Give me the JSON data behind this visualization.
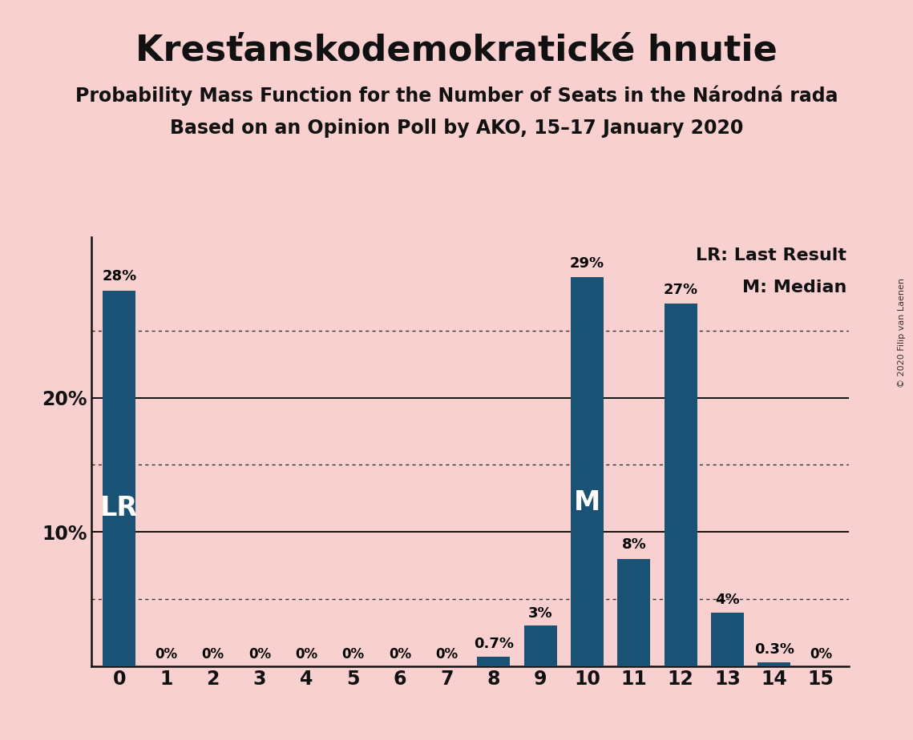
{
  "title": "Kresťanskodemokratické hnutie",
  "subtitle1": "Probability Mass Function for the Number of Seats in the Národná rada",
  "subtitle2": "Based on an Opinion Poll by AKO, 15–17 January 2020",
  "copyright": "© 2020 Filip van Laenen",
  "categories": [
    0,
    1,
    2,
    3,
    4,
    5,
    6,
    7,
    8,
    9,
    10,
    11,
    12,
    13,
    14,
    15
  ],
  "values": [
    28,
    0,
    0,
    0,
    0,
    0,
    0,
    0,
    0.7,
    3,
    29,
    8,
    27,
    4,
    0.3,
    0
  ],
  "bar_color": "#1a5276",
  "background_color": "#f9d0d0",
  "bar_labels": [
    "28%",
    "0%",
    "0%",
    "0%",
    "0%",
    "0%",
    "0%",
    "0%",
    "0.7%",
    "3%",
    "29%",
    "8%",
    "27%",
    "4%",
    "0.3%",
    "0%"
  ],
  "ylim_max": 32,
  "solid_gridlines": [
    10,
    20
  ],
  "dotted_gridlines": [
    5,
    15,
    25
  ],
  "lr_bar_idx": 0,
  "median_bar_idx": 10,
  "lr_label": "LR",
  "median_label": "M",
  "legend_lr": "LR: Last Result",
  "legend_m": "M: Median",
  "title_fontsize": 32,
  "subtitle_fontsize": 17,
  "bar_label_fontsize": 13,
  "axis_tick_fontsize": 17,
  "inbar_label_fontsize": 24,
  "legend_fontsize": 16,
  "ytick_positions": [
    10,
    20
  ],
  "ytick_labels": [
    "10%",
    "20%"
  ]
}
